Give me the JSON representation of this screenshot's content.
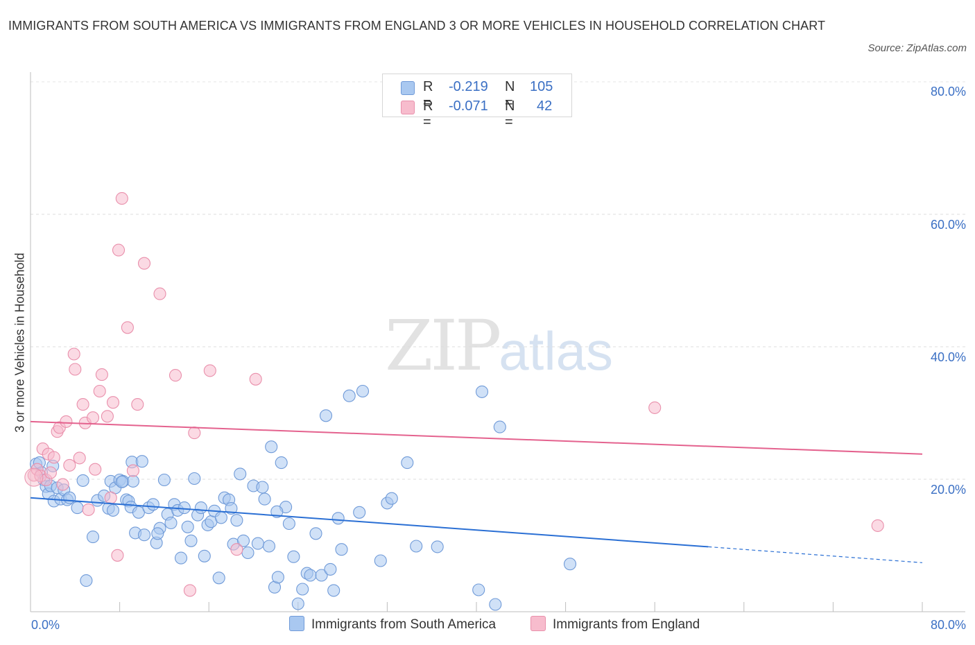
{
  "title": "IMMIGRANTS FROM SOUTH AMERICA VS IMMIGRANTS FROM ENGLAND 3 OR MORE VEHICLES IN HOUSEHOLD CORRELATION CHART",
  "source": "Source: ZipAtlas.com",
  "watermark": {
    "zip": "ZIP",
    "atlas": "atlas"
  },
  "colors": {
    "blue_fill": "#a9c8f0",
    "blue_stroke": "#6f9ad8",
    "blue_line": "#2a6fd4",
    "pink_fill": "#f7bccd",
    "pink_stroke": "#e98fab",
    "pink_line": "#e4628e",
    "axis_text": "#3a6fc4"
  },
  "legend": {
    "r_label": "R =",
    "n_label": "N =",
    "rows": [
      {
        "r": "-0.219",
        "n": "105",
        "color": "#a9c8f0"
      },
      {
        "r": "-0.071",
        "n": "42",
        "color": "#f7bccd"
      }
    ]
  },
  "bottom_legend": [
    {
      "label": "Immigrants from South America",
      "color": "#a9c8f0"
    },
    {
      "label": "Immigrants from England",
      "color": "#f7bccd"
    }
  ],
  "chart_data": {
    "type": "scatter",
    "title": "IMMIGRANTS FROM SOUTH AMERICA VS IMMIGRANTS FROM ENGLAND 3 OR MORE VEHICLES IN HOUSEHOLD CORRELATION CHART",
    "xlabel": "",
    "ylabel": "3 or more Vehicles in Household",
    "xlim": [
      0,
      80
    ],
    "ylim": [
      0,
      80
    ],
    "x_tick_labels": [
      "0.0%",
      "80.0%"
    ],
    "y_ticks": [
      20,
      40,
      60,
      80
    ],
    "y_tick_labels": [
      "20.0%",
      "40.0%",
      "60.0%",
      "80.0%"
    ],
    "grid": true,
    "legend_position": "top-center",
    "series": [
      {
        "name": "Immigrants from South America",
        "R": -0.219,
        "N": 105,
        "trend": {
          "x": [
            0,
            60.8
          ],
          "y": [
            17.2,
            9.8
          ],
          "dashed_x": [
            60.8,
            80
          ],
          "dashed_y": [
            9.8,
            7.4
          ]
        },
        "points": [
          [
            0.5,
            22.3
          ],
          [
            0.8,
            22.5
          ],
          [
            1.0,
            21.0
          ],
          [
            1.2,
            19.9
          ],
          [
            1.4,
            18.9
          ],
          [
            1.6,
            17.8
          ],
          [
            1.8,
            19.0
          ],
          [
            2.1,
            16.7
          ],
          [
            2.4,
            18.7
          ],
          [
            2.7,
            17.0
          ],
          [
            3.0,
            18.4
          ],
          [
            3.3,
            16.9
          ],
          [
            3.5,
            17.2
          ],
          [
            4.2,
            15.7
          ],
          [
            4.7,
            19.8
          ],
          [
            5.0,
            4.7
          ],
          [
            5.6,
            11.3
          ],
          [
            6.0,
            16.8
          ],
          [
            6.6,
            17.5
          ],
          [
            7.0,
            15.6
          ],
          [
            7.2,
            19.7
          ],
          [
            7.4,
            15.3
          ],
          [
            7.6,
            18.7
          ],
          [
            8.0,
            19.9
          ],
          [
            8.3,
            19.7
          ],
          [
            8.6,
            16.9
          ],
          [
            8.8,
            16.7
          ],
          [
            9.0,
            15.8
          ],
          [
            9.1,
            22.6
          ],
          [
            9.4,
            11.9
          ],
          [
            9.7,
            15.0
          ],
          [
            10.0,
            22.7
          ],
          [
            10.2,
            11.6
          ],
          [
            10.6,
            15.7
          ],
          [
            11.0,
            16.2
          ],
          [
            11.3,
            10.4
          ],
          [
            11.6,
            12.6
          ],
          [
            12.0,
            19.9
          ],
          [
            12.3,
            14.7
          ],
          [
            12.6,
            13.4
          ],
          [
            12.9,
            16.2
          ],
          [
            13.2,
            15.3
          ],
          [
            13.5,
            8.1
          ],
          [
            13.8,
            15.7
          ],
          [
            14.1,
            12.8
          ],
          [
            14.4,
            10.7
          ],
          [
            14.7,
            20.1
          ],
          [
            15.0,
            14.6
          ],
          [
            15.3,
            15.7
          ],
          [
            15.6,
            8.4
          ],
          [
            15.9,
            13.1
          ],
          [
            16.2,
            13.6
          ],
          [
            16.5,
            15.2
          ],
          [
            16.9,
            5.1
          ],
          [
            17.1,
            14.2
          ],
          [
            17.4,
            17.2
          ],
          [
            17.8,
            16.9
          ],
          [
            18.0,
            15.6
          ],
          [
            18.2,
            10.2
          ],
          [
            18.5,
            13.8
          ],
          [
            18.8,
            20.8
          ],
          [
            19.1,
            10.7
          ],
          [
            19.5,
            8.9
          ],
          [
            20.0,
            19.0
          ],
          [
            20.4,
            10.3
          ],
          [
            20.8,
            18.8
          ],
          [
            21.0,
            17.0
          ],
          [
            21.4,
            9.9
          ],
          [
            21.9,
            3.7
          ],
          [
            22.2,
            5.2
          ],
          [
            22.5,
            22.5
          ],
          [
            22.9,
            15.8
          ],
          [
            23.2,
            13.3
          ],
          [
            23.6,
            8.3
          ],
          [
            24.0,
            1.2
          ],
          [
            24.4,
            3.4
          ],
          [
            24.8,
            5.8
          ],
          [
            25.1,
            5.5
          ],
          [
            25.6,
            11.8
          ],
          [
            26.1,
            5.5
          ],
          [
            26.5,
            29.6
          ],
          [
            26.9,
            6.4
          ],
          [
            27.2,
            3.2
          ],
          [
            27.6,
            14.1
          ],
          [
            27.9,
            9.4
          ],
          [
            28.6,
            32.6
          ],
          [
            29.5,
            15.0
          ],
          [
            29.8,
            33.3
          ],
          [
            31.4,
            7.7
          ],
          [
            32.0,
            16.4
          ],
          [
            32.4,
            17.1
          ],
          [
            33.8,
            22.5
          ],
          [
            34.6,
            9.9
          ],
          [
            36.5,
            9.8
          ],
          [
            40.2,
            3.3
          ],
          [
            40.5,
            33.2
          ],
          [
            41.7,
            1.1
          ],
          [
            42.1,
            27.9
          ],
          [
            48.4,
            7.2
          ],
          [
            21.6,
            24.9
          ],
          [
            22.1,
            15.1
          ],
          [
            11.4,
            11.8
          ],
          [
            2.0,
            22.0
          ],
          [
            9.2,
            19.7
          ],
          [
            8.2,
            19.6
          ]
        ]
      },
      {
        "name": "Immigrants from England",
        "R": -0.071,
        "N": 42,
        "trend": {
          "x": [
            0,
            80
          ],
          "y": [
            28.7,
            23.8
          ]
        },
        "points": [
          [
            0.3,
            20.6
          ],
          [
            0.6,
            21.5
          ],
          [
            0.9,
            20.5
          ],
          [
            1.1,
            24.6
          ],
          [
            1.4,
            19.9
          ],
          [
            1.6,
            23.8
          ],
          [
            1.8,
            21.0
          ],
          [
            2.1,
            23.3
          ],
          [
            2.4,
            27.2
          ],
          [
            2.6,
            27.8
          ],
          [
            2.9,
            19.2
          ],
          [
            3.2,
            28.7
          ],
          [
            3.5,
            22.1
          ],
          [
            3.9,
            38.9
          ],
          [
            4.0,
            36.6
          ],
          [
            4.4,
            23.2
          ],
          [
            4.7,
            31.3
          ],
          [
            4.9,
            28.5
          ],
          [
            5.2,
            15.4
          ],
          [
            5.6,
            29.3
          ],
          [
            5.8,
            21.5
          ],
          [
            6.2,
            33.3
          ],
          [
            6.4,
            35.8
          ],
          [
            6.9,
            29.5
          ],
          [
            7.2,
            17.2
          ],
          [
            7.4,
            31.6
          ],
          [
            7.8,
            8.5
          ],
          [
            7.9,
            54.6
          ],
          [
            8.2,
            62.4
          ],
          [
            8.7,
            42.9
          ],
          [
            9.2,
            21.3
          ],
          [
            9.6,
            31.3
          ],
          [
            10.2,
            52.6
          ],
          [
            11.6,
            48.0
          ],
          [
            13.0,
            35.7
          ],
          [
            14.3,
            3.2
          ],
          [
            14.7,
            27.0
          ],
          [
            16.1,
            36.4
          ],
          [
            18.5,
            9.4
          ],
          [
            20.2,
            35.1
          ],
          [
            56.0,
            30.8
          ],
          [
            76.0,
            13.0
          ]
        ]
      }
    ]
  }
}
